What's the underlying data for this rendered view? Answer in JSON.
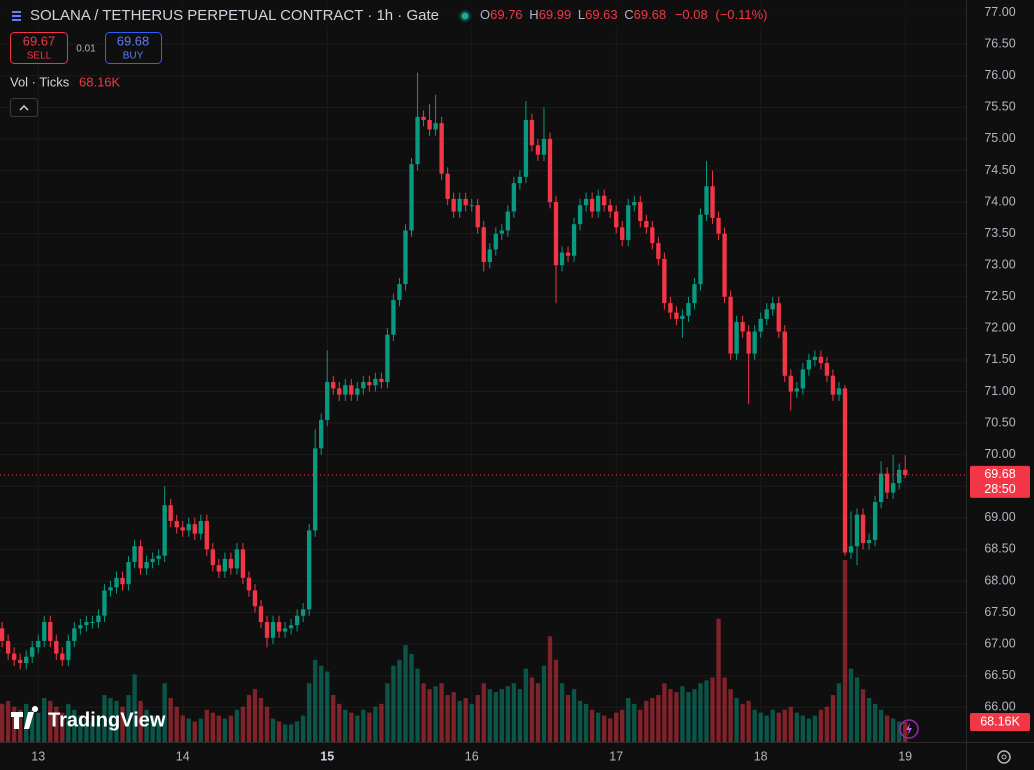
{
  "chart_data": {
    "type": "candlestick",
    "title": "SOLANA / TETHERUS PERPETUAL CONTRACT · 1h · Gate",
    "legend": {
      "o_label": "O",
      "o": 69.76,
      "h_label": "H",
      "h": 69.99,
      "l_label": "L",
      "l": 69.63,
      "c_label": "C",
      "c": 69.68,
      "change": {
        "value": -0.08,
        "label": "−0.08"
      },
      "change_pct": {
        "value": -0.11,
        "label": "(−0.11%)"
      }
    },
    "order_panel": {
      "sell_price": 69.67,
      "sell_label": "SELL",
      "spread": 0.01,
      "buy_price": 69.68,
      "buy_label": "BUY"
    },
    "volume_title": "Vol · Ticks",
    "last_volume": {
      "value": 68160,
      "label": "68.16K"
    },
    "countdown": "28:50",
    "logo": "TradingView",
    "up_color": "#089981",
    "down_color": "#f23645",
    "open": [
      67.25,
      67.05,
      66.85,
      66.75,
      66.7,
      66.8,
      66.95,
      67.05,
      67.35,
      67.05,
      66.85,
      66.75,
      67.05,
      67.25,
      67.3,
      67.35,
      67.35,
      67.45,
      67.85,
      67.9,
      68.05,
      67.95,
      68.3,
      68.55,
      68.2,
      68.3,
      68.35,
      68.4,
      69.2,
      68.95,
      68.85,
      68.8,
      68.9,
      68.75,
      68.95,
      68.5,
      68.25,
      68.15,
      68.35,
      68.2,
      68.5,
      68.05,
      67.85,
      67.6,
      67.35,
      67.1,
      67.35,
      67.2,
      67.25,
      67.3,
      67.45,
      67.55,
      68.8,
      70.1,
      70.55,
      71.15,
      71.05,
      70.95,
      71.1,
      70.95,
      71.05,
      71.15,
      71.1,
      71.2,
      71.15,
      71.9,
      72.45,
      72.7,
      73.55,
      74.6,
      75.35,
      75.3,
      75.15,
      75.25,
      74.45,
      74.05,
      73.85,
      74.05,
      73.95,
      73.95,
      73.6,
      73.05,
      73.25,
      73.5,
      73.55,
      73.85,
      74.3,
      74.4,
      75.3,
      74.9,
      74.75,
      75.0,
      74.0,
      73.0,
      73.2,
      73.15,
      73.65,
      73.95,
      74.05,
      73.85,
      74.1,
      73.95,
      73.85,
      73.6,
      73.4,
      73.95,
      74.0,
      73.7,
      73.6,
      73.35,
      73.1,
      72.4,
      72.25,
      72.15,
      72.2,
      72.4,
      72.7,
      73.8,
      74.25,
      73.75,
      73.5,
      72.5,
      71.6,
      72.1,
      71.95,
      71.6,
      71.95,
      72.15,
      72.3,
      72.4,
      71.95,
      71.25,
      71.0,
      71.05,
      71.35,
      71.5,
      71.55,
      71.45,
      71.25,
      70.95,
      71.05,
      68.45,
      68.55,
      69.05,
      68.6,
      68.65,
      69.25,
      69.7,
      69.4,
      69.55,
      69.76
    ],
    "high": [
      67.35,
      67.15,
      66.95,
      66.85,
      66.9,
      67.05,
      67.15,
      67.45,
      67.45,
      67.15,
      66.95,
      67.15,
      67.35,
      67.4,
      67.45,
      67.45,
      67.55,
      67.95,
      68.0,
      68.15,
      68.15,
      68.4,
      68.65,
      68.65,
      68.4,
      68.45,
      68.5,
      69.5,
      69.3,
      69.05,
      68.95,
      69.0,
      69.0,
      69.05,
      69.05,
      68.6,
      68.35,
      68.45,
      68.45,
      68.6,
      68.6,
      68.15,
      67.95,
      67.7,
      67.45,
      67.45,
      67.45,
      67.35,
      67.4,
      67.55,
      67.65,
      68.9,
      70.4,
      70.65,
      71.65,
      71.25,
      71.15,
      71.2,
      71.2,
      71.15,
      71.25,
      71.25,
      71.3,
      71.3,
      72.0,
      72.55,
      72.8,
      73.65,
      74.7,
      76.05,
      75.45,
      75.55,
      75.7,
      75.35,
      74.55,
      74.15,
      74.15,
      74.15,
      74.05,
      74.05,
      73.7,
      73.35,
      73.6,
      73.65,
      73.95,
      74.4,
      74.5,
      75.6,
      75.4,
      75.0,
      75.5,
      75.1,
      74.1,
      73.3,
      73.3,
      73.75,
      74.05,
      74.15,
      74.15,
      74.2,
      74.2,
      74.05,
      73.95,
      73.7,
      74.05,
      74.1,
      74.1,
      73.8,
      73.7,
      73.45,
      73.2,
      72.5,
      72.35,
      72.3,
      72.5,
      72.8,
      73.9,
      74.65,
      74.5,
      73.85,
      73.6,
      72.6,
      72.2,
      72.2,
      72.05,
      72.05,
      72.25,
      72.4,
      72.5,
      72.5,
      72.05,
      71.35,
      71.15,
      71.45,
      71.6,
      71.65,
      71.65,
      71.55,
      71.35,
      71.15,
      71.1,
      69.1,
      69.15,
      69.15,
      68.75,
      69.35,
      69.9,
      69.8,
      70.0,
      69.86,
      69.99
    ],
    "low": [
      66.95,
      66.75,
      66.65,
      66.6,
      66.6,
      66.7,
      66.85,
      66.95,
      66.95,
      66.75,
      66.65,
      66.65,
      66.95,
      67.15,
      67.2,
      67.25,
      67.25,
      67.35,
      67.75,
      67.8,
      67.85,
      67.85,
      68.2,
      68.1,
      68.1,
      68.2,
      68.25,
      68.3,
      68.85,
      68.75,
      68.7,
      68.7,
      68.65,
      68.65,
      68.4,
      68.15,
      68.05,
      68.05,
      68.1,
      68.1,
      67.95,
      67.75,
      67.5,
      67.25,
      66.95,
      67.0,
      67.1,
      67.1,
      67.15,
      67.2,
      67.35,
      67.45,
      68.7,
      70.0,
      70.45,
      70.95,
      70.85,
      70.85,
      70.85,
      70.85,
      70.95,
      71.0,
      71.0,
      71.05,
      71.05,
      71.8,
      72.35,
      72.6,
      73.45,
      74.5,
      75.2,
      75.05,
      75.05,
      74.35,
      73.95,
      73.75,
      73.75,
      73.85,
      73.85,
      73.5,
      72.9,
      72.95,
      73.15,
      73.4,
      73.45,
      73.75,
      74.2,
      74.3,
      74.8,
      74.65,
      74.65,
      73.9,
      72.4,
      72.9,
      73.05,
      73.05,
      73.55,
      73.85,
      73.75,
      73.75,
      73.85,
      73.75,
      73.5,
      73.3,
      73.3,
      73.85,
      73.6,
      73.5,
      73.25,
      73.0,
      72.3,
      72.15,
      72.05,
      71.85,
      72.1,
      72.3,
      72.6,
      73.7,
      73.65,
      73.4,
      72.4,
      71.5,
      71.5,
      71.85,
      70.8,
      71.5,
      71.85,
      72.05,
      72.2,
      71.85,
      71.15,
      70.7,
      70.9,
      70.95,
      71.25,
      71.4,
      71.35,
      71.15,
      70.85,
      70.85,
      68.4,
      68.35,
      68.25,
      68.5,
      68.5,
      68.55,
      69.15,
      69.3,
      69.3,
      69.45,
      69.63
    ],
    "close": [
      67.05,
      66.85,
      66.75,
      66.7,
      66.8,
      66.95,
      67.05,
      67.35,
      67.05,
      66.85,
      66.75,
      67.05,
      67.25,
      67.3,
      67.35,
      67.35,
      67.45,
      67.85,
      67.9,
      68.05,
      67.95,
      68.3,
      68.55,
      68.2,
      68.3,
      68.35,
      68.4,
      69.2,
      68.95,
      68.85,
      68.8,
      68.9,
      68.75,
      68.95,
      68.5,
      68.25,
      68.15,
      68.35,
      68.2,
      68.5,
      68.05,
      67.85,
      67.6,
      67.35,
      67.1,
      67.35,
      67.2,
      67.25,
      67.3,
      67.45,
      67.55,
      68.8,
      70.1,
      70.55,
      71.15,
      71.05,
      70.95,
      71.1,
      70.95,
      71.05,
      71.15,
      71.1,
      71.2,
      71.15,
      71.9,
      72.45,
      72.7,
      73.55,
      74.6,
      75.35,
      75.3,
      75.15,
      75.25,
      74.45,
      74.05,
      73.85,
      74.05,
      73.95,
      73.95,
      73.6,
      73.05,
      73.25,
      73.5,
      73.55,
      73.85,
      74.3,
      74.4,
      75.3,
      74.9,
      74.75,
      75.0,
      74.0,
      73.0,
      73.2,
      73.15,
      73.65,
      73.95,
      74.05,
      73.85,
      74.1,
      73.95,
      73.85,
      73.6,
      73.4,
      73.95,
      74.0,
      73.7,
      73.6,
      73.35,
      73.1,
      72.4,
      72.25,
      72.15,
      72.2,
      72.4,
      72.7,
      73.8,
      74.25,
      73.75,
      73.5,
      72.5,
      71.6,
      72.1,
      71.95,
      71.6,
      71.95,
      72.15,
      72.3,
      72.4,
      71.95,
      71.25,
      71.0,
      71.05,
      71.35,
      71.5,
      71.55,
      71.45,
      71.25,
      70.95,
      71.05,
      68.45,
      68.55,
      69.05,
      68.6,
      68.65,
      69.25,
      69.7,
      69.4,
      69.55,
      69.76,
      69.68
    ],
    "volume": [
      130000,
      140000,
      120000,
      110000,
      130000,
      110000,
      100000,
      150000,
      140000,
      120000,
      100000,
      130000,
      110000,
      90000,
      80000,
      70000,
      90000,
      160000,
      150000,
      140000,
      120000,
      160000,
      230000,
      140000,
      110000,
      90000,
      80000,
      200000,
      150000,
      120000,
      90000,
      80000,
      70000,
      80000,
      110000,
      100000,
      90000,
      80000,
      90000,
      110000,
      120000,
      160000,
      180000,
      150000,
      120000,
      80000,
      70000,
      60000,
      60000,
      70000,
      90000,
      200000,
      280000,
      260000,
      240000,
      160000,
      130000,
      110000,
      100000,
      90000,
      110000,
      100000,
      120000,
      130000,
      200000,
      260000,
      280000,
      330000,
      300000,
      250000,
      200000,
      180000,
      190000,
      200000,
      160000,
      170000,
      140000,
      150000,
      130000,
      160000,
      200000,
      180000,
      170000,
      180000,
      190000,
      200000,
      180000,
      250000,
      220000,
      200000,
      260000,
      360000,
      280000,
      200000,
      160000,
      180000,
      140000,
      130000,
      110000,
      100000,
      90000,
      80000,
      100000,
      110000,
      150000,
      130000,
      110000,
      140000,
      150000,
      160000,
      200000,
      180000,
      170000,
      190000,
      170000,
      180000,
      200000,
      210000,
      220000,
      420000,
      220000,
      180000,
      150000,
      130000,
      140000,
      110000,
      100000,
      90000,
      110000,
      100000,
      110000,
      120000,
      100000,
      90000,
      80000,
      90000,
      110000,
      120000,
      160000,
      200000,
      620000,
      250000,
      220000,
      180000,
      150000,
      130000,
      110000,
      90000,
      80000,
      70000,
      68160
    ],
    "xlim": [
      -0.35,
      160.1
    ],
    "xticks": [
      {
        "value": 6,
        "label": "13"
      },
      {
        "value": 30,
        "label": "14"
      },
      {
        "value": 54,
        "label": "15"
      },
      {
        "value": 78,
        "label": "16"
      },
      {
        "value": 102,
        "label": "17"
      },
      {
        "value": 126,
        "label": "18"
      },
      {
        "value": 150,
        "label": "19"
      }
    ],
    "ylim": [
      65.45,
      77.2
    ],
    "yticks": [
      {
        "value": 66,
        "label": "66.00"
      },
      {
        "value": 66.5,
        "label": "66.50"
      },
      {
        "value": 67,
        "label": "67.00"
      },
      {
        "value": 67.5,
        "label": "67.50"
      },
      {
        "value": 68,
        "label": "68.00"
      },
      {
        "value": 68.5,
        "label": "68.50"
      },
      {
        "value": 69,
        "label": "69.00"
      },
      {
        "value": 69.5,
        "label": "69.50"
      },
      {
        "value": 70,
        "label": "70.00"
      },
      {
        "value": 70.5,
        "label": "70.50"
      },
      {
        "value": 71,
        "label": "71.00"
      },
      {
        "value": 71.5,
        "label": "71.50"
      },
      {
        "value": 72,
        "label": "72.00"
      },
      {
        "value": 72.5,
        "label": "72.50"
      },
      {
        "value": 73,
        "label": "73.00"
      },
      {
        "value": 73.5,
        "label": "73.50"
      },
      {
        "value": 74,
        "label": "74.00"
      },
      {
        "value": 74.5,
        "label": "74.50"
      },
      {
        "value": 75,
        "label": "75.00"
      },
      {
        "value": 75.5,
        "label": "75.50"
      },
      {
        "value": 76,
        "label": "76.00"
      },
      {
        "value": 76.5,
        "label": "76.50"
      },
      {
        "value": 77,
        "label": "77.00"
      }
    ],
    "grid": true
  }
}
